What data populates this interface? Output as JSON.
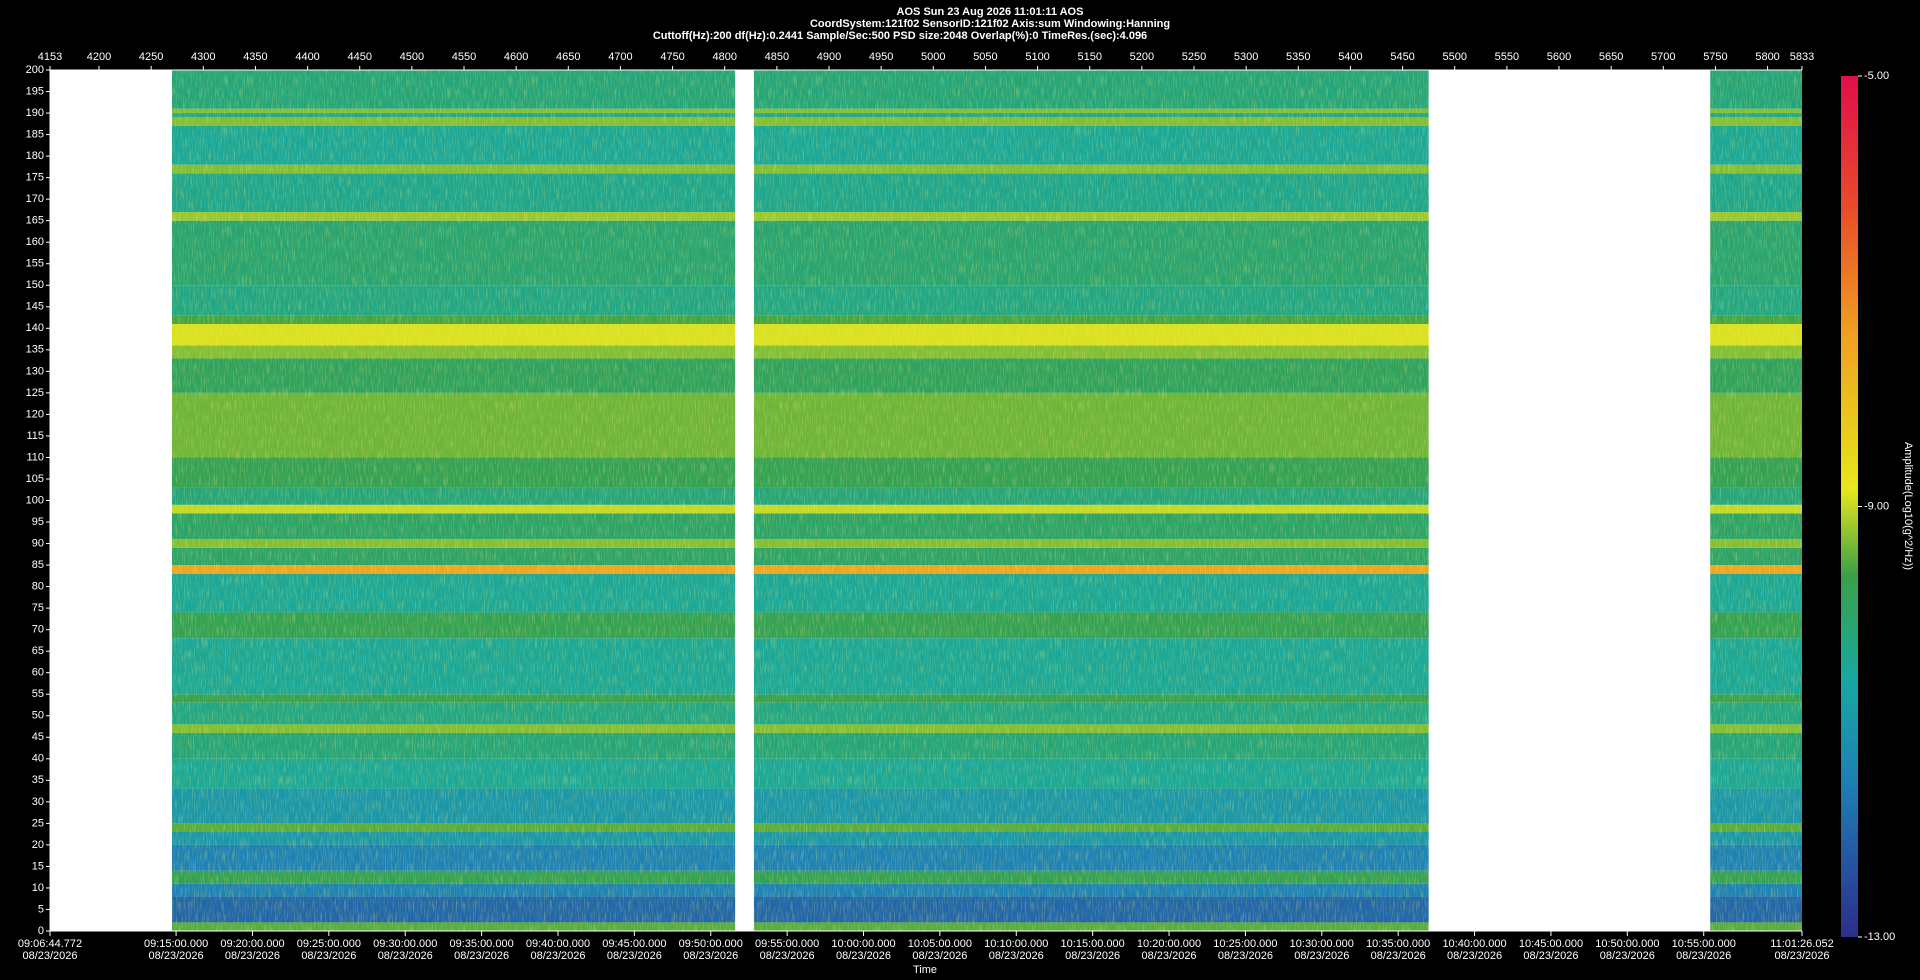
{
  "chart_data": {
    "type": "spectrogram",
    "title": "AOS  Sun 23 Aug 2026 11:01:11  AOS",
    "subtitle": "CoordSystem:121f02   SensorID:121f02   Axis:sum   Windowing:Hanning",
    "subtitle2": "Cuttoff(Hz):200    df(Hz):0.2441    Sample/Sec:500    PSD size:2048    Overlap(%):0    TimeRes.(sec):4.096",
    "xlabel": "Time",
    "colorbar_label": "Amplitude(Log10(g^2/Hz))",
    "ylim": [
      0,
      200
    ],
    "yticks": [
      0,
      5,
      10,
      15,
      20,
      25,
      30,
      35,
      40,
      45,
      50,
      55,
      60,
      65,
      70,
      75,
      80,
      85,
      90,
      95,
      100,
      105,
      110,
      115,
      120,
      125,
      130,
      135,
      140,
      145,
      150,
      155,
      160,
      165,
      170,
      175,
      180,
      185,
      190,
      195,
      200
    ],
    "x2lim": [
      4153,
      5833
    ],
    "x2ticks": [
      4153,
      4200,
      4250,
      4300,
      4350,
      4400,
      4450,
      4500,
      4550,
      4600,
      4650,
      4700,
      4750,
      4800,
      4850,
      4900,
      4950,
      5000,
      5050,
      5100,
      5150,
      5200,
      5250,
      5300,
      5350,
      5400,
      5450,
      5500,
      5550,
      5600,
      5650,
      5700,
      5750,
      5800,
      5833
    ],
    "xlim": [
      32804.772,
      39686.052
    ],
    "xticks": [
      {
        "value": 32804.772,
        "label": "09:06:44.772",
        "date": "08/23/2026"
      },
      {
        "value": 33300,
        "label": "09:15:00.000",
        "date": "08/23/2026"
      },
      {
        "value": 33600,
        "label": "09:20:00.000",
        "date": "08/23/2026"
      },
      {
        "value": 33900,
        "label": "09:25:00.000",
        "date": "08/23/2026"
      },
      {
        "value": 34200,
        "label": "09:30:00.000",
        "date": "08/23/2026"
      },
      {
        "value": 34500,
        "label": "09:35:00.000",
        "date": "08/23/2026"
      },
      {
        "value": 34800,
        "label": "09:40:00.000",
        "date": "08/23/2026"
      },
      {
        "value": 35100,
        "label": "09:45:00.000",
        "date": "08/23/2026"
      },
      {
        "value": 35400,
        "label": "09:50:00.000",
        "date": "08/23/2026"
      },
      {
        "value": 35700,
        "label": "09:55:00.000",
        "date": "08/23/2026"
      },
      {
        "value": 36000,
        "label": "10:00:00.000",
        "date": "08/23/2026"
      },
      {
        "value": 36300,
        "label": "10:05:00.000",
        "date": "08/23/2026"
      },
      {
        "value": 36600,
        "label": "10:10:00.000",
        "date": "08/23/2026"
      },
      {
        "value": 36900,
        "label": "10:15:00.000",
        "date": "08/23/2026"
      },
      {
        "value": 37200,
        "label": "10:20:00.000",
        "date": "08/23/2026"
      },
      {
        "value": 37500,
        "label": "10:25:00.000",
        "date": "08/23/2026"
      },
      {
        "value": 37800,
        "label": "10:30:00.000",
        "date": "08/23/2026"
      },
      {
        "value": 38100,
        "label": "10:35:00.000",
        "date": "08/23/2026"
      },
      {
        "value": 38400,
        "label": "10:40:00.000",
        "date": "08/23/2026"
      },
      {
        "value": 38700,
        "label": "10:45:00.000",
        "date": "08/23/2026"
      },
      {
        "value": 39000,
        "label": "10:50:00.000",
        "date": "08/23/2026"
      },
      {
        "value": 39300,
        "label": "10:55:00.000",
        "date": "08/23/2026"
      },
      {
        "value": 39686.052,
        "label": "11:01:26.052",
        "date": "08/23/2026"
      }
    ],
    "segments": [
      [
        4270,
        4810
      ],
      [
        4828,
        5475
      ],
      [
        5745,
        5833
      ]
    ],
    "profile": {
      "freq": [
        0,
        2,
        8,
        11,
        14,
        20,
        23,
        25,
        33,
        40,
        46,
        48,
        53,
        55,
        68,
        74,
        83,
        85,
        89,
        91,
        97,
        99,
        103,
        110,
        125,
        133,
        136,
        141,
        143,
        150,
        165,
        167,
        176,
        178,
        187,
        189,
        190,
        191
      ],
      "values": [
        -9.5,
        -12,
        -11.5,
        -9.8,
        -11.5,
        -11,
        -9.5,
        -11,
        -10.5,
        -10.2,
        -9.3,
        -10.3,
        -9.8,
        -10.5,
        -9.8,
        -10.5,
        -7.5,
        -10,
        -9.3,
        -10,
        -9,
        -10.2,
        -9.8,
        -9.4,
        -9.9,
        -9.3,
        -8.9,
        -9.6,
        -10.3,
        -10.1,
        -9.2,
        -10.4,
        -9.3,
        -10.5,
        -9.3,
        -10.4,
        -9.3,
        -10.2
      ]
    },
    "clim": [
      -13,
      -5
    ],
    "cticks": [
      {
        "value": -5,
        "label": "-5.00"
      },
      {
        "value": -9,
        "label": "-9.00"
      },
      {
        "value": -13,
        "label": "-13.00"
      }
    ]
  }
}
